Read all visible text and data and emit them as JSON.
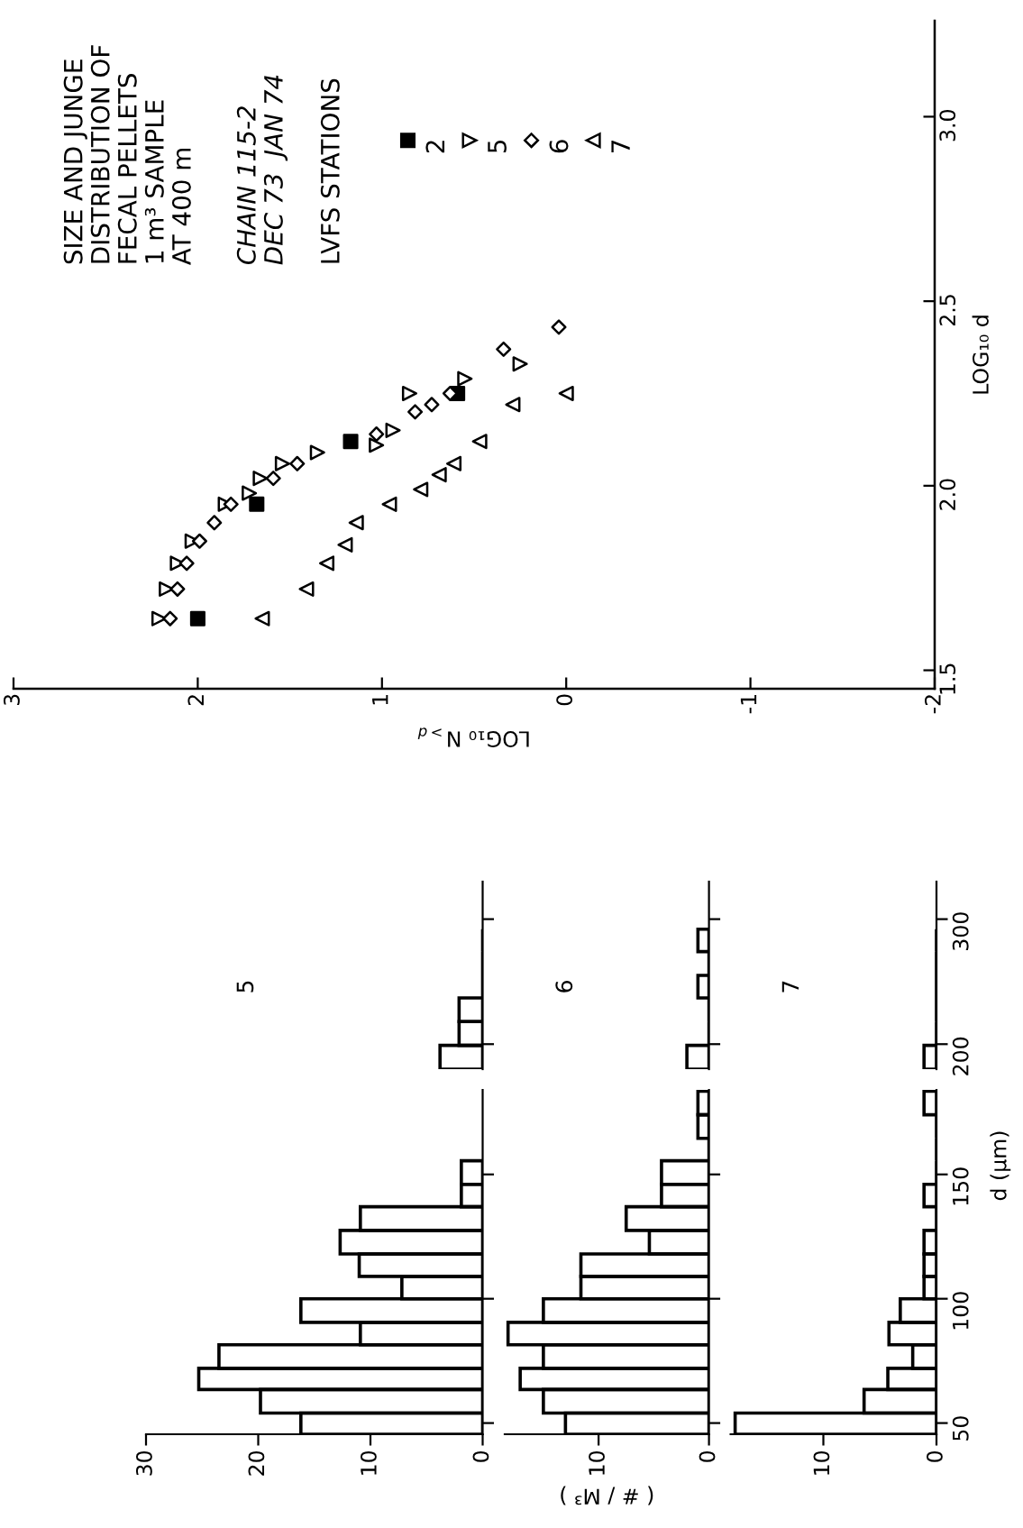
{
  "chart_data": [
    {
      "type": "scatter",
      "title": "SIZE AND JUNGE\nDISTRIBUTION OF\nFECAL PELLETS\n1 m³ SAMPLE\nAT 400 m",
      "subtitle": "CHAIN 115-2\nDEC 73  JAN 74",
      "legend_title": "LVFS STATIONS",
      "legend": "top left",
      "xlabel": "LOG₁₀ N$_{>d}$",
      "ylabel": "LOG₁₀ d",
      "xlim": [
        3,
        -2
      ],
      "xticks": [
        3,
        2,
        1,
        0,
        -1,
        -2
      ],
      "ylim": [
        1.45,
        3.26
      ],
      "yticks": [
        1.5,
        {
          "value": 2,
          "label": "2.0"
        },
        2.5,
        {
          "value": 3,
          "label": "3.0"
        }
      ],
      "grid": false,
      "series": [
        {
          "name": "2",
          "color": "#000000",
          "marker": "square",
          "x": [
            2.0,
            1.68,
            1.17,
            0.59
          ],
          "values": [
            1.64,
            1.95,
            2.12,
            2.25
          ]
        },
        {
          "name": "5",
          "color": "#000000",
          "marker": "triangle",
          "x": [
            2.21,
            2.17,
            2.11,
            2.03,
            1.85,
            1.72,
            1.66,
            1.54,
            1.35,
            1.03,
            0.94,
            0.85,
            0.55,
            0.25
          ],
          "values": [
            1.64,
            1.72,
            1.79,
            1.85,
            1.95,
            1.98,
            2.02,
            2.06,
            2.09,
            2.11,
            2.15,
            2.25,
            2.29,
            2.33
          ]
        },
        {
          "name": "6",
          "color": "#000000",
          "marker": "diamond",
          "x": [
            2.15,
            2.11,
            2.06,
            1.99,
            1.91,
            1.82,
            1.59,
            1.46,
            1.03,
            0.82,
            0.73,
            0.63,
            0.34,
            0.04
          ],
          "values": [
            1.64,
            1.72,
            1.79,
            1.85,
            1.9,
            1.95,
            2.02,
            2.06,
            2.14,
            2.2,
            2.22,
            2.25,
            2.37,
            2.43
          ]
        },
        {
          "name": "7",
          "color": "#000000",
          "marker": "triangle",
          "x": [
            1.65,
            1.41,
            1.3,
            1.2,
            1.14,
            0.96,
            0.79,
            0.69,
            0.61,
            0.47,
            0.29,
            0.0
          ],
          "values": [
            1.64,
            1.72,
            1.79,
            1.84,
            1.9,
            1.95,
            1.99,
            2.03,
            2.06,
            2.12,
            2.22,
            2.25
          ]
        }
      ]
    },
    {
      "type": "histogram",
      "orientation": "horizontal",
      "title": "5",
      "color": "#000000",
      "bins": [
        180,
        199,
        218,
        237,
        255,
        274,
        292
      ],
      "values": [
        3.8,
        2.1,
        2.1,
        0,
        0,
        0
      ],
      "xlim": [
        30,
        0
      ],
      "xticks": [
        0,
        10,
        20,
        30
      ],
      "ylim": [
        180,
        330
      ],
      "yticks": [
        200,
        300
      ],
      "tick_labels": false
    },
    {
      "type": "histogram",
      "orientation": "horizontal",
      "title": "6",
      "color": "#000000",
      "bins": [
        180,
        199,
        218,
        237,
        255,
        274,
        292
      ],
      "values": [
        2.0,
        0,
        0,
        1.0,
        0,
        1.0
      ],
      "xticks": [
        0,
        10
      ],
      "ylim": [
        180,
        330
      ],
      "yticks": [
        200,
        300
      ],
      "tick_labels": false
    },
    {
      "type": "histogram",
      "orientation": "horizontal",
      "title": "7",
      "color": "#000000",
      "bins": [
        180,
        199,
        218,
        237,
        255,
        274,
        292
      ],
      "values": [
        1.1,
        0,
        0,
        0,
        0,
        0
      ],
      "xticks": [
        0,
        10
      ],
      "ylim": [
        180,
        330
      ],
      "yticks": [
        200,
        300
      ],
      "tick_labels": "y"
    },
    {
      "type": "histogram",
      "orientation": "horizontal",
      "color": "#000000",
      "bins": [
        45.5,
        54,
        63.5,
        72,
        81.5,
        90.5,
        100,
        109,
        118,
        127.5,
        137,
        146,
        155.5
      ],
      "values": [
        16.2,
        19.8,
        25.3,
        23.5,
        10.9,
        16.2,
        7.2,
        11.0,
        12.7,
        10.9,
        1.9,
        1.9
      ],
      "xlim": [
        30,
        0
      ],
      "xticks": [
        0,
        10,
        20,
        30
      ],
      "ylim": [
        45.5,
        184
      ],
      "yticks": [
        50,
        100,
        150
      ],
      "tick_labels": "x"
    },
    {
      "type": "histogram",
      "orientation": "horizontal",
      "color": "#000000",
      "xlabel": "( # / M³ )",
      "bins": [
        45.5,
        54,
        63.5,
        72,
        81.5,
        90.5,
        100,
        109,
        118,
        127.5,
        137,
        146,
        155.5,
        164.5,
        174,
        183.5
      ],
      "values": [
        13.0,
        15.0,
        17.1,
        15.0,
        18.2,
        15.0,
        11.6,
        11.6,
        5.4,
        7.5,
        4.3,
        4.3,
        0,
        1.0,
        1.0
      ],
      "xlim": [
        18.5,
        0
      ],
      "xticks": [
        0,
        10
      ],
      "ylim": [
        45.5,
        184
      ],
      "yticks": [
        50,
        100,
        150
      ],
      "tick_labels": "x"
    },
    {
      "type": "histogram",
      "orientation": "horizontal",
      "color": "#000000",
      "ylabel": "d (µm)",
      "bins": [
        45.5,
        54,
        63.5,
        72,
        81.5,
        90.5,
        100,
        109,
        118,
        127.5,
        137,
        146,
        155.5,
        164.5,
        174,
        183.5
      ],
      "values": [
        17.8,
        6.4,
        4.3,
        2.1,
        4.2,
        3.2,
        1.1,
        1.1,
        1.1,
        0,
        1.1,
        0,
        0,
        0,
        1.1
      ],
      "xlim": [
        18.2,
        0
      ],
      "xticks": [
        0,
        10
      ],
      "ylim": [
        45.5,
        184
      ],
      "yticks": [
        50,
        100,
        150
      ]
    }
  ]
}
